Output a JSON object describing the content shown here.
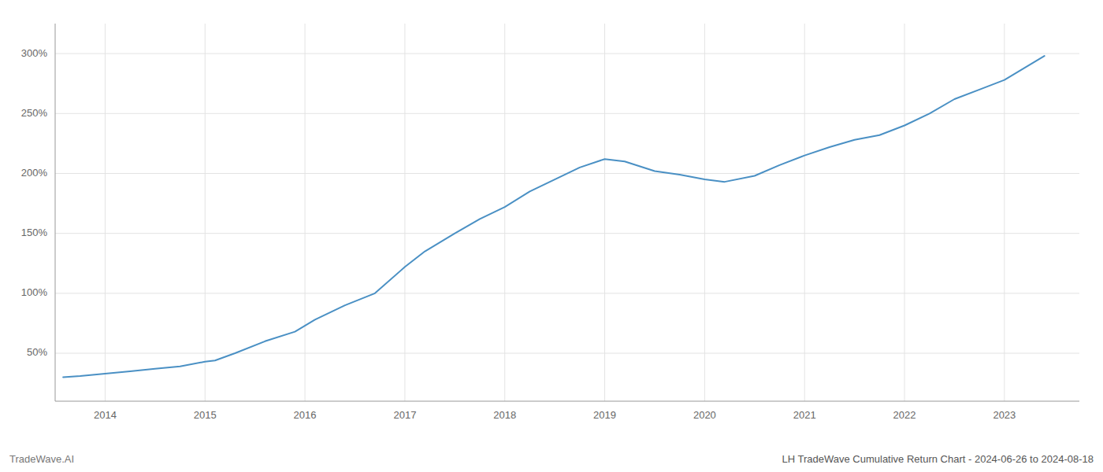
{
  "chart_data": {
    "type": "line",
    "title": "LH TradeWave Cumulative Return Chart - 2024-06-26 to 2024-08-18",
    "annotations": [
      "TradeWave.AI"
    ],
    "x": [
      2013.58,
      2013.75,
      2014.0,
      2014.25,
      2014.5,
      2014.75,
      2015.0,
      2015.1,
      2015.3,
      2015.6,
      2015.9,
      2016.1,
      2016.4,
      2016.7,
      2017.0,
      2017.2,
      2017.5,
      2017.75,
      2018.0,
      2018.25,
      2018.5,
      2018.75,
      2019.0,
      2019.2,
      2019.5,
      2019.75,
      2020.0,
      2020.2,
      2020.5,
      2020.75,
      2021.0,
      2021.25,
      2021.5,
      2021.75,
      2022.0,
      2022.25,
      2022.5,
      2022.75,
      2023.0,
      2023.4
    ],
    "values": [
      30,
      31,
      33,
      35,
      37,
      39,
      43,
      44,
      50,
      60,
      68,
      78,
      90,
      100,
      122,
      135,
      150,
      162,
      172,
      185,
      195,
      205,
      212,
      210,
      202,
      199,
      195,
      193,
      198,
      207,
      215,
      222,
      228,
      232,
      240,
      250,
      262,
      270,
      278,
      298
    ],
    "color": "#4a90c4",
    "xlim": [
      2013.5,
      2023.75
    ],
    "ylim": [
      10,
      325
    ],
    "xticks": [
      2014,
      2015,
      2016,
      2017,
      2018,
      2019,
      2020,
      2021,
      2022,
      2023
    ],
    "yticks": [
      {
        "value": 50,
        "label": "50%"
      },
      {
        "value": 100,
        "label": "100%"
      },
      {
        "value": 150,
        "label": "150%"
      },
      {
        "value": 200,
        "label": "200%"
      },
      {
        "value": 250,
        "label": "250%"
      },
      {
        "value": 300,
        "label": "300%"
      }
    ],
    "grid": true
  }
}
